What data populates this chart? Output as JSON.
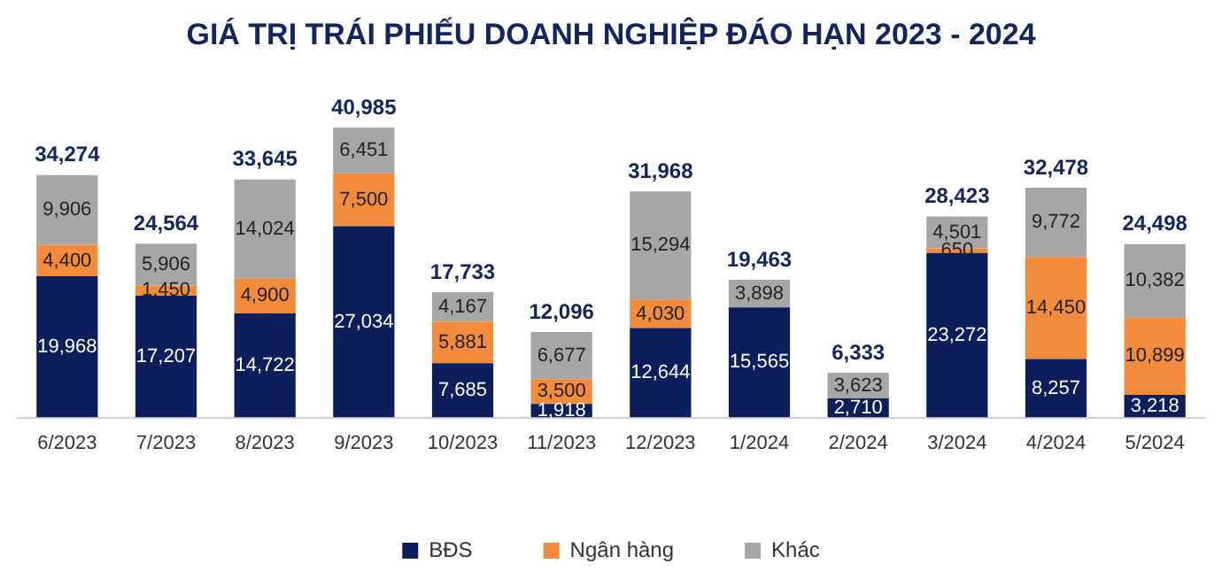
{
  "chart_data": {
    "type": "bar",
    "title": "GIÁ TRỊ TRÁI PHIẾU DOANH NGHIỆP ĐÁO HẠN 2023 - 2024",
    "stacked": true,
    "legend": "bottom",
    "grid": false,
    "tick_labels": "x",
    "categories": [
      "6/2023",
      "7/2023",
      "8/2023",
      "9/2023",
      "10/2023",
      "11/2023",
      "12/2023",
      "1/2024",
      "2/2024",
      "3/2024",
      "4/2024",
      "5/2024"
    ],
    "series": [
      {
        "name": "BĐS",
        "color": "#0c1e5b",
        "values": [
          19968,
          17207,
          14722,
          27034,
          7685,
          1918,
          12644,
          15565,
          2710,
          23272,
          8257,
          3218
        ],
        "value_labels": [
          "19,968",
          "17,207",
          "14,722",
          "27,034",
          "7,685",
          "1,918",
          "12,644",
          "15,565",
          "2,710",
          "23,272",
          "8,257",
          "3,218"
        ]
      },
      {
        "name": "Ngân hàng",
        "color": "#f28b3c",
        "values": [
          4400,
          1450,
          4900,
          7500,
          5881,
          3500,
          4030,
          null,
          null,
          650,
          14450,
          10899
        ],
        "value_labels": [
          "4,400",
          "1,450",
          "4,900",
          "7,500",
          "5,881",
          "3,500",
          "4,030",
          null,
          null,
          "650",
          "14,450",
          "10,899"
        ]
      },
      {
        "name": "Khác",
        "color": "#a6a6a6",
        "values": [
          9906,
          5906,
          14024,
          6451,
          4167,
          6677,
          15294,
          3898,
          3623,
          4501,
          9772,
          10382
        ],
        "value_labels": [
          "9,906",
          "5,906",
          "14,024",
          "6,451",
          "4,167",
          "6,677",
          "15,294",
          "3,898",
          "3,623",
          "4,501",
          "9,772",
          "10,382"
        ]
      }
    ],
    "totals": [
      "34,274",
      "24,564",
      "33,645",
      "40,985",
      "17,733",
      "12,096",
      "31,968",
      "19,463",
      "6,333",
      "28,423",
      "32,478",
      "24,498"
    ]
  }
}
